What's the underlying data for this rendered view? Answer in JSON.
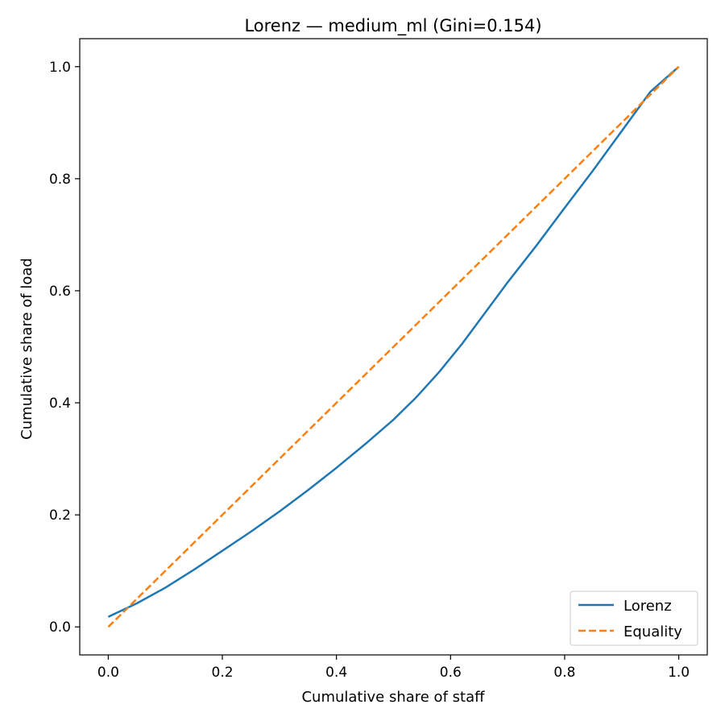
{
  "chart_data": {
    "type": "line",
    "title": "Lorenz — medium_ml (Gini=0.154)",
    "xlabel": "Cumulative share of staff",
    "ylabel": "Cumulative share of load",
    "xlim": [
      -0.05,
      1.05
    ],
    "ylim": [
      -0.05,
      1.05
    ],
    "x_ticks": [
      0.0,
      0.2,
      0.4,
      0.6,
      0.8,
      1.0
    ],
    "y_ticks": [
      0.0,
      0.2,
      0.4,
      0.6,
      0.8,
      1.0
    ],
    "x_tick_labels": [
      "0.0",
      "0.2",
      "0.4",
      "0.6",
      "0.8",
      "1.0"
    ],
    "y_tick_labels": [
      "0.0",
      "0.2",
      "0.4",
      "0.6",
      "0.8",
      "1.0"
    ],
    "grid": false,
    "legend_position": "lower-right",
    "series": [
      {
        "name": "Lorenz",
        "color": "#1f77b4",
        "line_style": "solid",
        "x": [
          0.0,
          0.05,
          0.1,
          0.15,
          0.2,
          0.25,
          0.3,
          0.35,
          0.4,
          0.45,
          0.5,
          0.54,
          0.58,
          0.62,
          0.66,
          0.7,
          0.75,
          0.8,
          0.85,
          0.9,
          0.95,
          1.0
        ],
        "y": [
          0.018,
          0.042,
          0.07,
          0.102,
          0.136,
          0.17,
          0.206,
          0.244,
          0.284,
          0.326,
          0.37,
          0.41,
          0.455,
          0.505,
          0.56,
          0.615,
          0.68,
          0.748,
          0.815,
          0.885,
          0.955,
          1.0
        ]
      },
      {
        "name": "Equality",
        "color": "#ff7f0e",
        "line_style": "dashed",
        "x": [
          0.0,
          1.0
        ],
        "y": [
          0.0,
          1.0
        ]
      }
    ]
  }
}
